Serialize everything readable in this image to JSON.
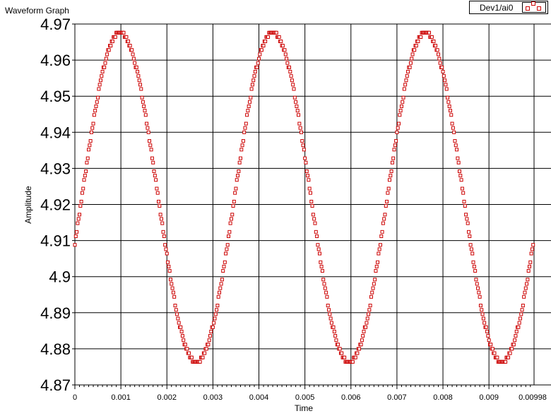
{
  "window": {
    "title": "Waveform Graph"
  },
  "legend": {
    "label": "Dev1/ai0"
  },
  "chart_data": {
    "type": "scatter",
    "title": "Waveform Graph",
    "xlabel": "Time",
    "ylabel": "Amplitude",
    "xlim": [
      0,
      0.00998
    ],
    "ylim": [
      4.87,
      4.97
    ],
    "x_ticks": [
      "0",
      "0.001",
      "0.002",
      "0.003",
      "0.004",
      "0.005",
      "0.006",
      "0.007",
      "0.008",
      "0.009",
      "0.00998"
    ],
    "y_ticks": [
      "4.97",
      "4.96",
      "4.95",
      "4.94",
      "4.93",
      "4.92",
      "4.91",
      "4.9",
      "4.89",
      "4.88",
      "4.87"
    ],
    "grid": true,
    "legend_position": "top-right",
    "series": [
      {
        "name": "Dev1/ai0",
        "marker": "hollow-square",
        "color": "#cc0000",
        "x_start": 0,
        "dt": 2e-05,
        "points": 500,
        "waveform": "sine",
        "mean": 4.922,
        "amplitude": 0.0457,
        "period": 0.00332,
        "phase_peak_at": 0.00098,
        "quantization": 0.0012
      }
    ]
  },
  "colors": {
    "background": "#ffffff",
    "grid": "#000000",
    "marker": "#cc0000"
  }
}
